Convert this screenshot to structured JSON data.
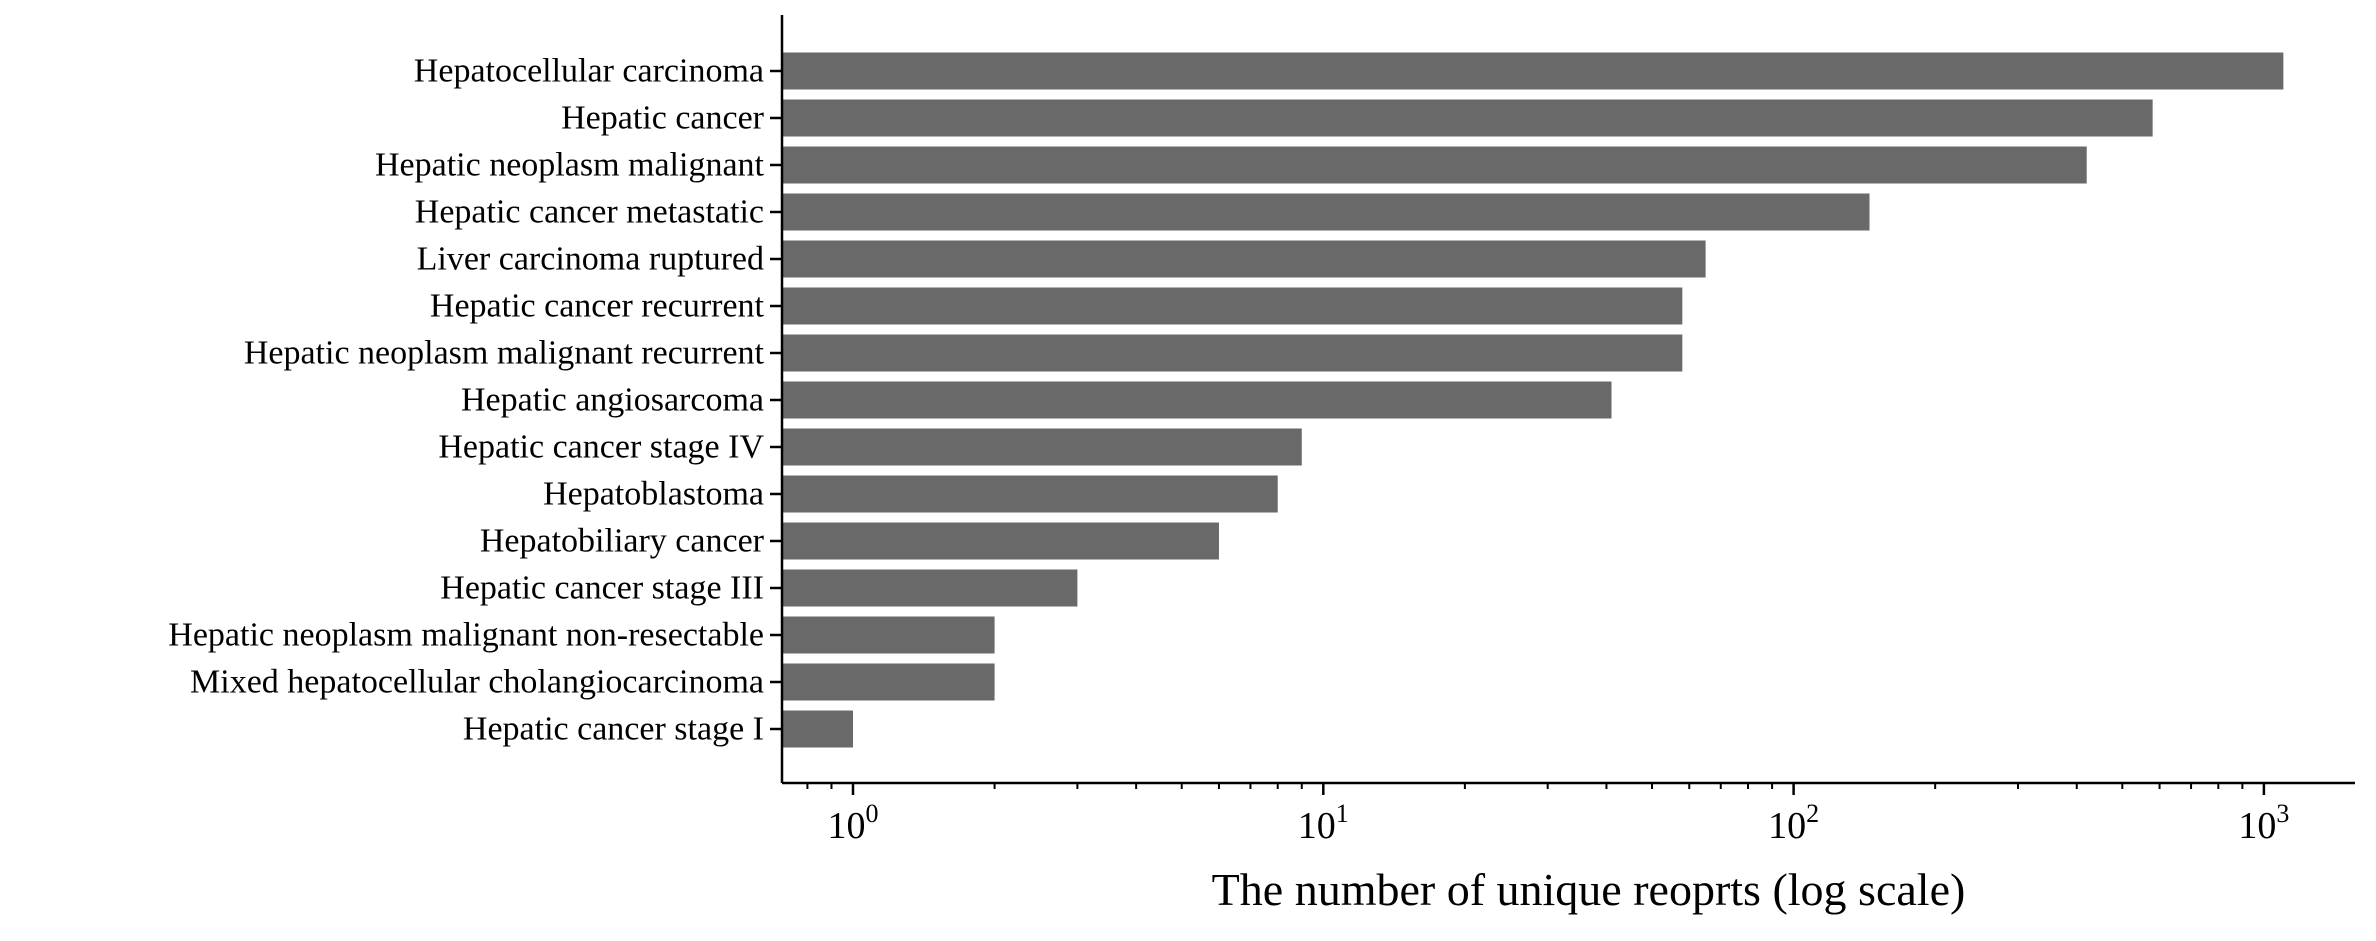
{
  "chart_data": {
    "type": "bar",
    "orientation": "horizontal",
    "categories": [
      "Hepatocellular carcinoma",
      "Hepatic cancer",
      "Hepatic neoplasm malignant",
      "Hepatic cancer metastatic",
      "Liver carcinoma ruptured",
      "Hepatic cancer recurrent",
      "Hepatic neoplasm malignant recurrent",
      "Hepatic angiosarcoma",
      "Hepatic cancer stage IV",
      "Hepatoblastoma",
      "Hepatobiliary cancer",
      "Hepatic cancer stage III",
      "Hepatic neoplasm malignant non-resectable",
      "Mixed hepatocellular cholangiocarcinoma",
      "Hepatic cancer stage I"
    ],
    "values": [
      1100,
      580,
      420,
      145,
      65,
      58,
      58,
      41,
      9,
      8,
      6,
      3,
      2,
      2,
      1
    ],
    "xlabel": "The number of unique reoprts (log scale)",
    "ylabel": "",
    "xscale": "log",
    "xlim": [
      0.72,
      1800
    ],
    "xticks": [
      {
        "base": "10",
        "exp": "0",
        "value": 1
      },
      {
        "base": "10",
        "exp": "1",
        "value": 10
      },
      {
        "base": "10",
        "exp": "2",
        "value": 100
      },
      {
        "base": "10",
        "exp": "3",
        "value": 1000
      }
    ],
    "bar_color": "#696969",
    "grid": false,
    "legend": "none"
  }
}
